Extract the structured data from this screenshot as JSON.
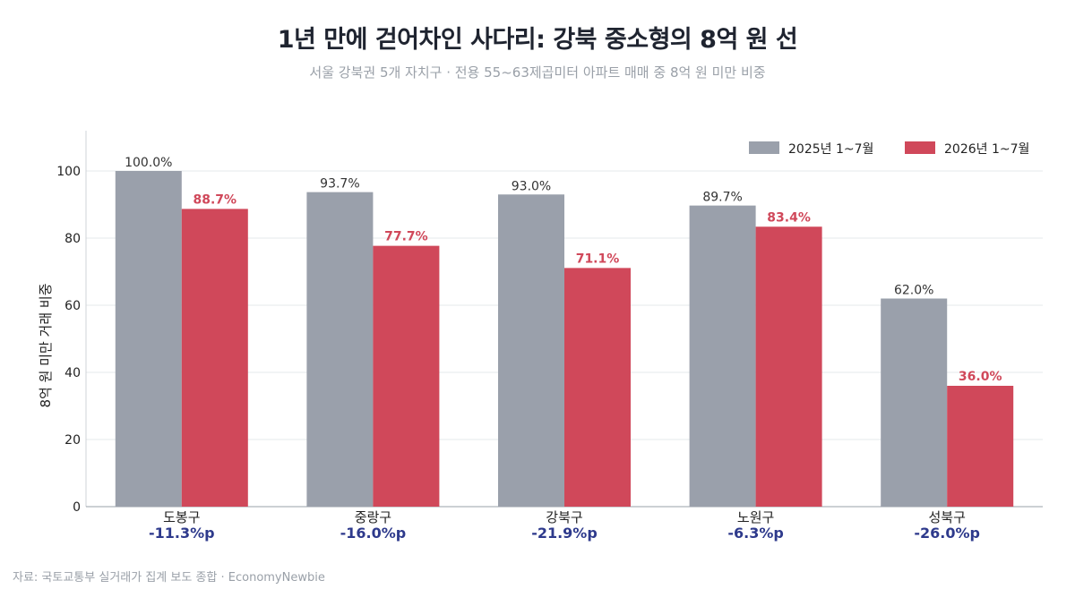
{
  "title": "1년 만에 걷어차인 사다리: 강북 중소형의 8억 원 선",
  "subtitle": "서울 강북권 5개 자치구 · 전용 55~63제곱미터 아파트 매매 중 8억 원 미만 비중",
  "source": "자료: 국토교통부 실거래가 집계 보도 종합 · EconomyNewbie",
  "colors": {
    "series_2025": "#9aa0ab",
    "series_2026": "#d0485a",
    "diff": "#2e3a8c"
  },
  "chart_data": {
    "type": "bar",
    "categories": [
      "도봉구",
      "중랑구",
      "강북구",
      "노원구",
      "성북구"
    ],
    "series": [
      {
        "name": "2025년 1~7월",
        "values": [
          100.0,
          93.7,
          93.0,
          89.7,
          62.0
        ],
        "labels": [
          "100.0%",
          "93.7%",
          "93.0%",
          "89.7%",
          "62.0%"
        ]
      },
      {
        "name": "2026년 1~7월",
        "values": [
          88.7,
          77.7,
          71.1,
          83.4,
          36.0
        ],
        "labels": [
          "88.7%",
          "77.7%",
          "71.1%",
          "83.4%",
          "36.0%"
        ]
      }
    ],
    "differences": [
      "-11.3%p",
      "-16.0%p",
      "-21.9%p",
      "-6.3%p",
      "-26.0%p"
    ],
    "ylabel": "8억 원 미만 거래 비중",
    "ylim": [
      0,
      112
    ],
    "yticks": [
      0,
      20,
      40,
      60,
      80,
      100
    ],
    "grid": true,
    "legend_position": "top-right"
  }
}
